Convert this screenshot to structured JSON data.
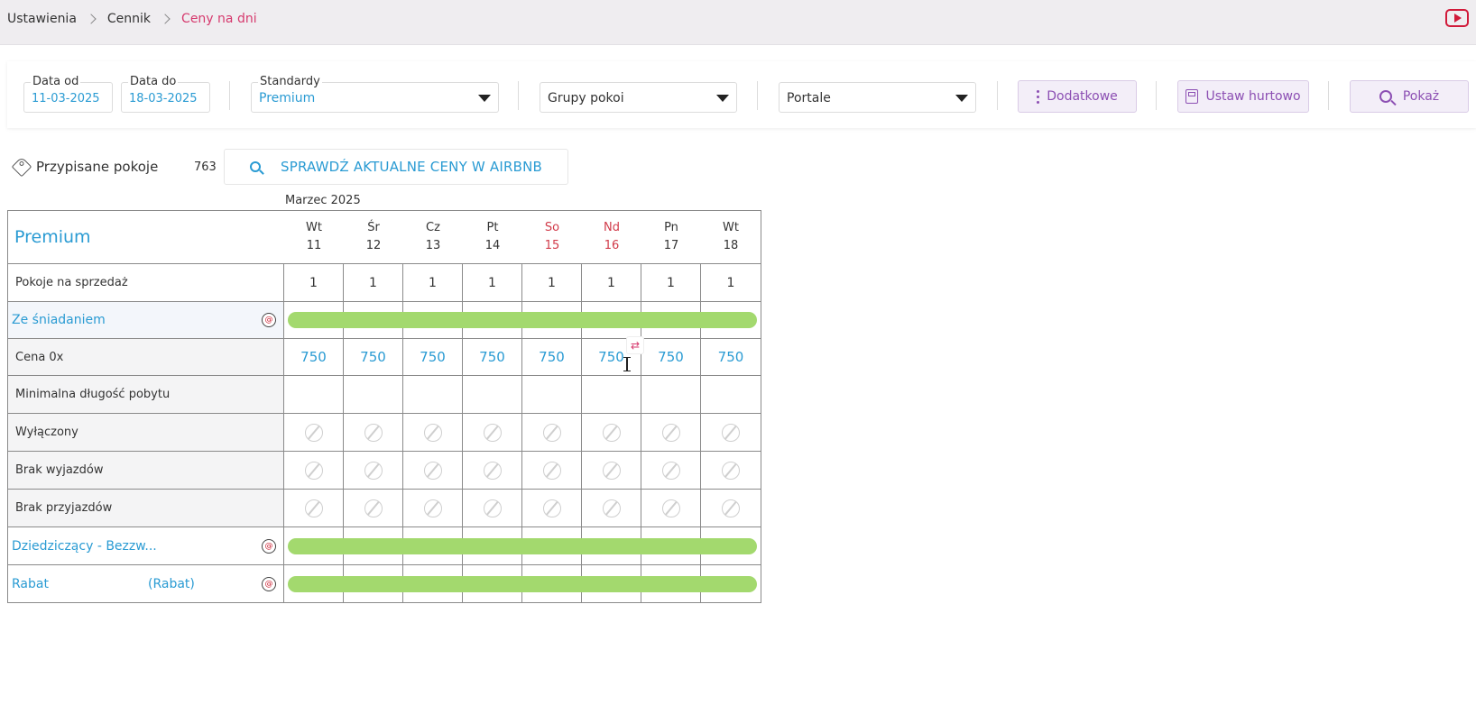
{
  "breadcrumb": {
    "items": [
      "Ustawienia",
      "Cennik"
    ],
    "active": "Ceny na dni"
  },
  "filters": {
    "date_from": {
      "label": "Data od",
      "value": "11-03-2025"
    },
    "date_to": {
      "label": "Data do",
      "value": "18-03-2025"
    },
    "standard": {
      "label": "Standardy",
      "value": "Premium"
    },
    "room_groups": "Grupy pokoi",
    "portals": "Portale",
    "extra_btn": "Dodatkowe",
    "bulk_btn": "Ustaw hurtowo",
    "show_btn": "Pokaż"
  },
  "assigned": {
    "label": "Przypisane pokoje",
    "count": "763"
  },
  "airbnb_btn": "SPRAWDŹ AKTUALNE CENY W AIRBNB",
  "month": "Marzec 2025",
  "grid": {
    "title": "Premium",
    "days": [
      {
        "dow": "Wt",
        "day": "11",
        "weekend": false
      },
      {
        "dow": "Śr",
        "day": "12",
        "weekend": false
      },
      {
        "dow": "Cz",
        "day": "13",
        "weekend": false
      },
      {
        "dow": "Pt",
        "day": "14",
        "weekend": false
      },
      {
        "dow": "So",
        "day": "15",
        "weekend": true
      },
      {
        "dow": "Nd",
        "day": "16",
        "weekend": true
      },
      {
        "dow": "Pn",
        "day": "17",
        "weekend": false
      },
      {
        "dow": "Wt",
        "day": "18",
        "weekend": false
      }
    ],
    "rooms_for_sale": {
      "label": "Pokoje na sprzedaż",
      "values": [
        "1",
        "1",
        "1",
        "1",
        "1",
        "1",
        "1",
        "1"
      ]
    },
    "rate_breakfast": "Ze śniadaniem",
    "price_row": {
      "label": "Cena 0x",
      "values": [
        "750",
        "750",
        "750",
        "750",
        "750",
        "750",
        "750",
        "750"
      ]
    },
    "min_stay": "Minimalna długość pobytu",
    "disabled": "Wyłączony",
    "no_departures": "Brak wyjazdów",
    "no_arrivals": "Brak przyjazdów",
    "rate_inherit": "Dziedziczący - Bezzw...",
    "rate_discount": "Rabat",
    "rate_discount_tag": "(Rabat)"
  },
  "colors": {
    "accent": "#2a9bd3",
    "active_crumb": "#d63a6e",
    "bar": "#a3d96e",
    "weekend": "#d13b4a"
  },
  "icons": [
    "youtube-icon",
    "tag-icon",
    "zoom-icon",
    "dots-icon",
    "calculator-icon",
    "search-icon",
    "blocked-icon",
    "sync-icon"
  ]
}
